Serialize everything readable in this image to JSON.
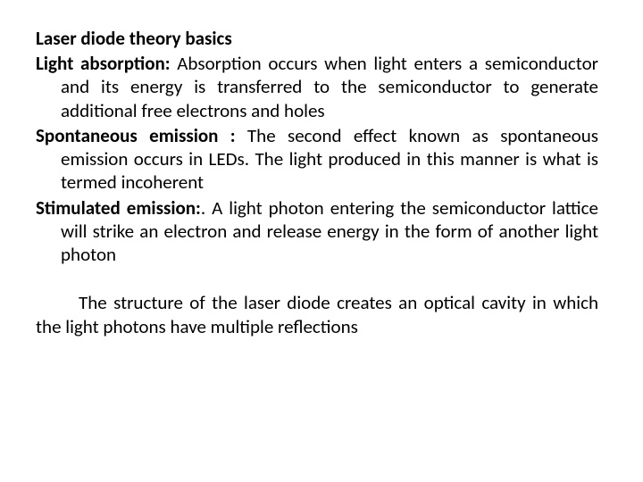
{
  "title": "Laser diode theory basics",
  "sections": [
    {
      "heading": "Light absorption:",
      "body": " Absorption occurs when light enters a semiconductor and its energy is transferred to the semiconductor to generate additional free electrons and holes"
    },
    {
      "heading": "Spontaneous emission :",
      "body": " The second effect known as spontaneous emission occurs in LEDs. The light produced in this manner is what is termed incoherent"
    },
    {
      "heading": "Stimulated emission:",
      "body": ". A light photon entering the semiconductor lattice will strike an electron and release energy in the form of another light photon"
    }
  ],
  "footer": "The structure of the laser diode creates an optical cavity in which the light photons have multiple reflections"
}
